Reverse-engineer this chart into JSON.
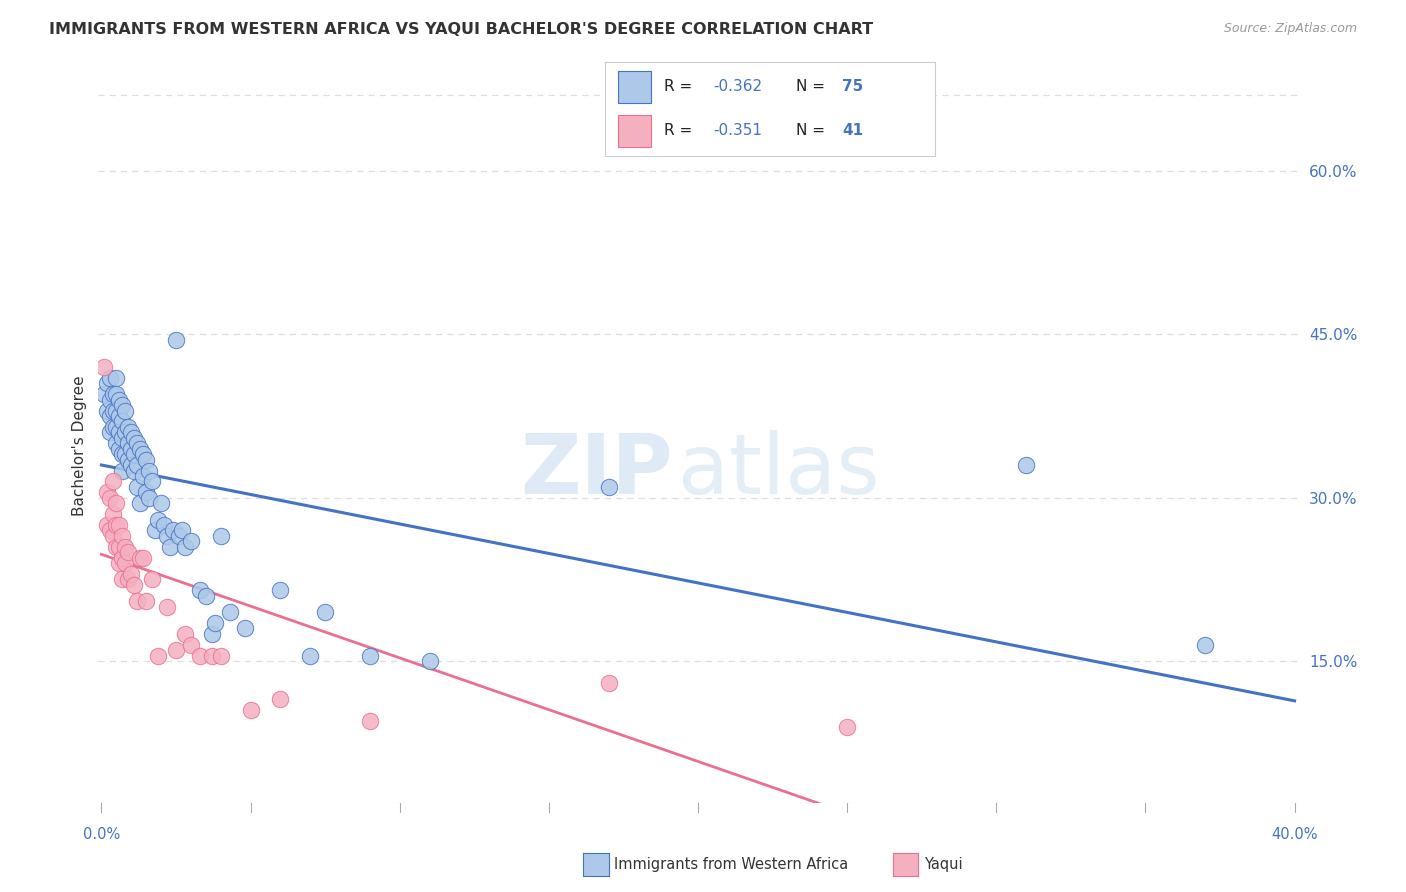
{
  "title": "IMMIGRANTS FROM WESTERN AFRICA VS YAQUI BACHELOR'S DEGREE CORRELATION CHART",
  "source": "Source: ZipAtlas.com",
  "ylabel": "Bachelor's Degree",
  "yticks": [
    0.15,
    0.3,
    0.45,
    0.6
  ],
  "ytick_labels": [
    "15.0%",
    "30.0%",
    "45.0%",
    "60.0%"
  ],
  "xlim": [
    -0.001,
    0.402
  ],
  "ylim": [
    0.02,
    0.675
  ],
  "series1_label": "Immigrants from Western Africa",
  "series2_label": "Yaqui",
  "series1_color": "#adc8e8",
  "series2_color": "#f5b0c0",
  "series1_edge_color": "#4472c4",
  "series2_edge_color": "#e87090",
  "series1_line_color": "#4472c4",
  "series2_line_color": "#e87090",
  "axis_label_color": "#4472c4",
  "text_color": "#333333",
  "source_color": "#999999",
  "watermark_color": "#c8dff0",
  "grid_color": "#dddddd",
  "background_color": "#ffffff",
  "legend_r1": "-0.362",
  "legend_n1": "75",
  "legend_r2": "-0.351",
  "legend_n2": "41",
  "blue_pts_x": [
    0.001,
    0.002,
    0.002,
    0.003,
    0.003,
    0.003,
    0.003,
    0.004,
    0.004,
    0.004,
    0.005,
    0.005,
    0.005,
    0.005,
    0.005,
    0.006,
    0.006,
    0.006,
    0.006,
    0.007,
    0.007,
    0.007,
    0.007,
    0.007,
    0.008,
    0.008,
    0.008,
    0.009,
    0.009,
    0.009,
    0.01,
    0.01,
    0.01,
    0.011,
    0.011,
    0.011,
    0.012,
    0.012,
    0.012,
    0.013,
    0.013,
    0.014,
    0.014,
    0.015,
    0.015,
    0.016,
    0.016,
    0.017,
    0.018,
    0.019,
    0.02,
    0.021,
    0.022,
    0.023,
    0.024,
    0.025,
    0.026,
    0.027,
    0.028,
    0.03,
    0.033,
    0.035,
    0.037,
    0.038,
    0.04,
    0.043,
    0.048,
    0.06,
    0.07,
    0.075,
    0.09,
    0.11,
    0.17,
    0.31,
    0.37
  ],
  "blue_pts_y": [
    0.395,
    0.405,
    0.38,
    0.41,
    0.39,
    0.375,
    0.36,
    0.395,
    0.38,
    0.365,
    0.41,
    0.395,
    0.38,
    0.365,
    0.35,
    0.39,
    0.375,
    0.36,
    0.345,
    0.385,
    0.37,
    0.355,
    0.34,
    0.325,
    0.38,
    0.36,
    0.34,
    0.365,
    0.35,
    0.335,
    0.36,
    0.345,
    0.33,
    0.355,
    0.34,
    0.325,
    0.35,
    0.33,
    0.31,
    0.345,
    0.295,
    0.34,
    0.32,
    0.335,
    0.305,
    0.325,
    0.3,
    0.315,
    0.27,
    0.28,
    0.295,
    0.275,
    0.265,
    0.255,
    0.27,
    0.445,
    0.265,
    0.27,
    0.255,
    0.26,
    0.215,
    0.21,
    0.175,
    0.185,
    0.265,
    0.195,
    0.18,
    0.215,
    0.155,
    0.195,
    0.155,
    0.15,
    0.31,
    0.33,
    0.165
  ],
  "pink_pts_x": [
    0.001,
    0.002,
    0.002,
    0.003,
    0.003,
    0.004,
    0.004,
    0.004,
    0.005,
    0.005,
    0.005,
    0.006,
    0.006,
    0.006,
    0.007,
    0.007,
    0.007,
    0.008,
    0.008,
    0.009,
    0.009,
    0.01,
    0.011,
    0.012,
    0.013,
    0.014,
    0.015,
    0.017,
    0.019,
    0.022,
    0.025,
    0.028,
    0.03,
    0.033,
    0.037,
    0.04,
    0.05,
    0.06,
    0.09,
    0.17,
    0.25
  ],
  "pink_pts_y": [
    0.42,
    0.305,
    0.275,
    0.3,
    0.27,
    0.315,
    0.285,
    0.265,
    0.295,
    0.275,
    0.255,
    0.275,
    0.255,
    0.24,
    0.265,
    0.245,
    0.225,
    0.255,
    0.24,
    0.25,
    0.225,
    0.23,
    0.22,
    0.205,
    0.245,
    0.245,
    0.205,
    0.225,
    0.155,
    0.2,
    0.16,
    0.175,
    0.165,
    0.155,
    0.155,
    0.155,
    0.105,
    0.115,
    0.095,
    0.13,
    0.09
  ]
}
